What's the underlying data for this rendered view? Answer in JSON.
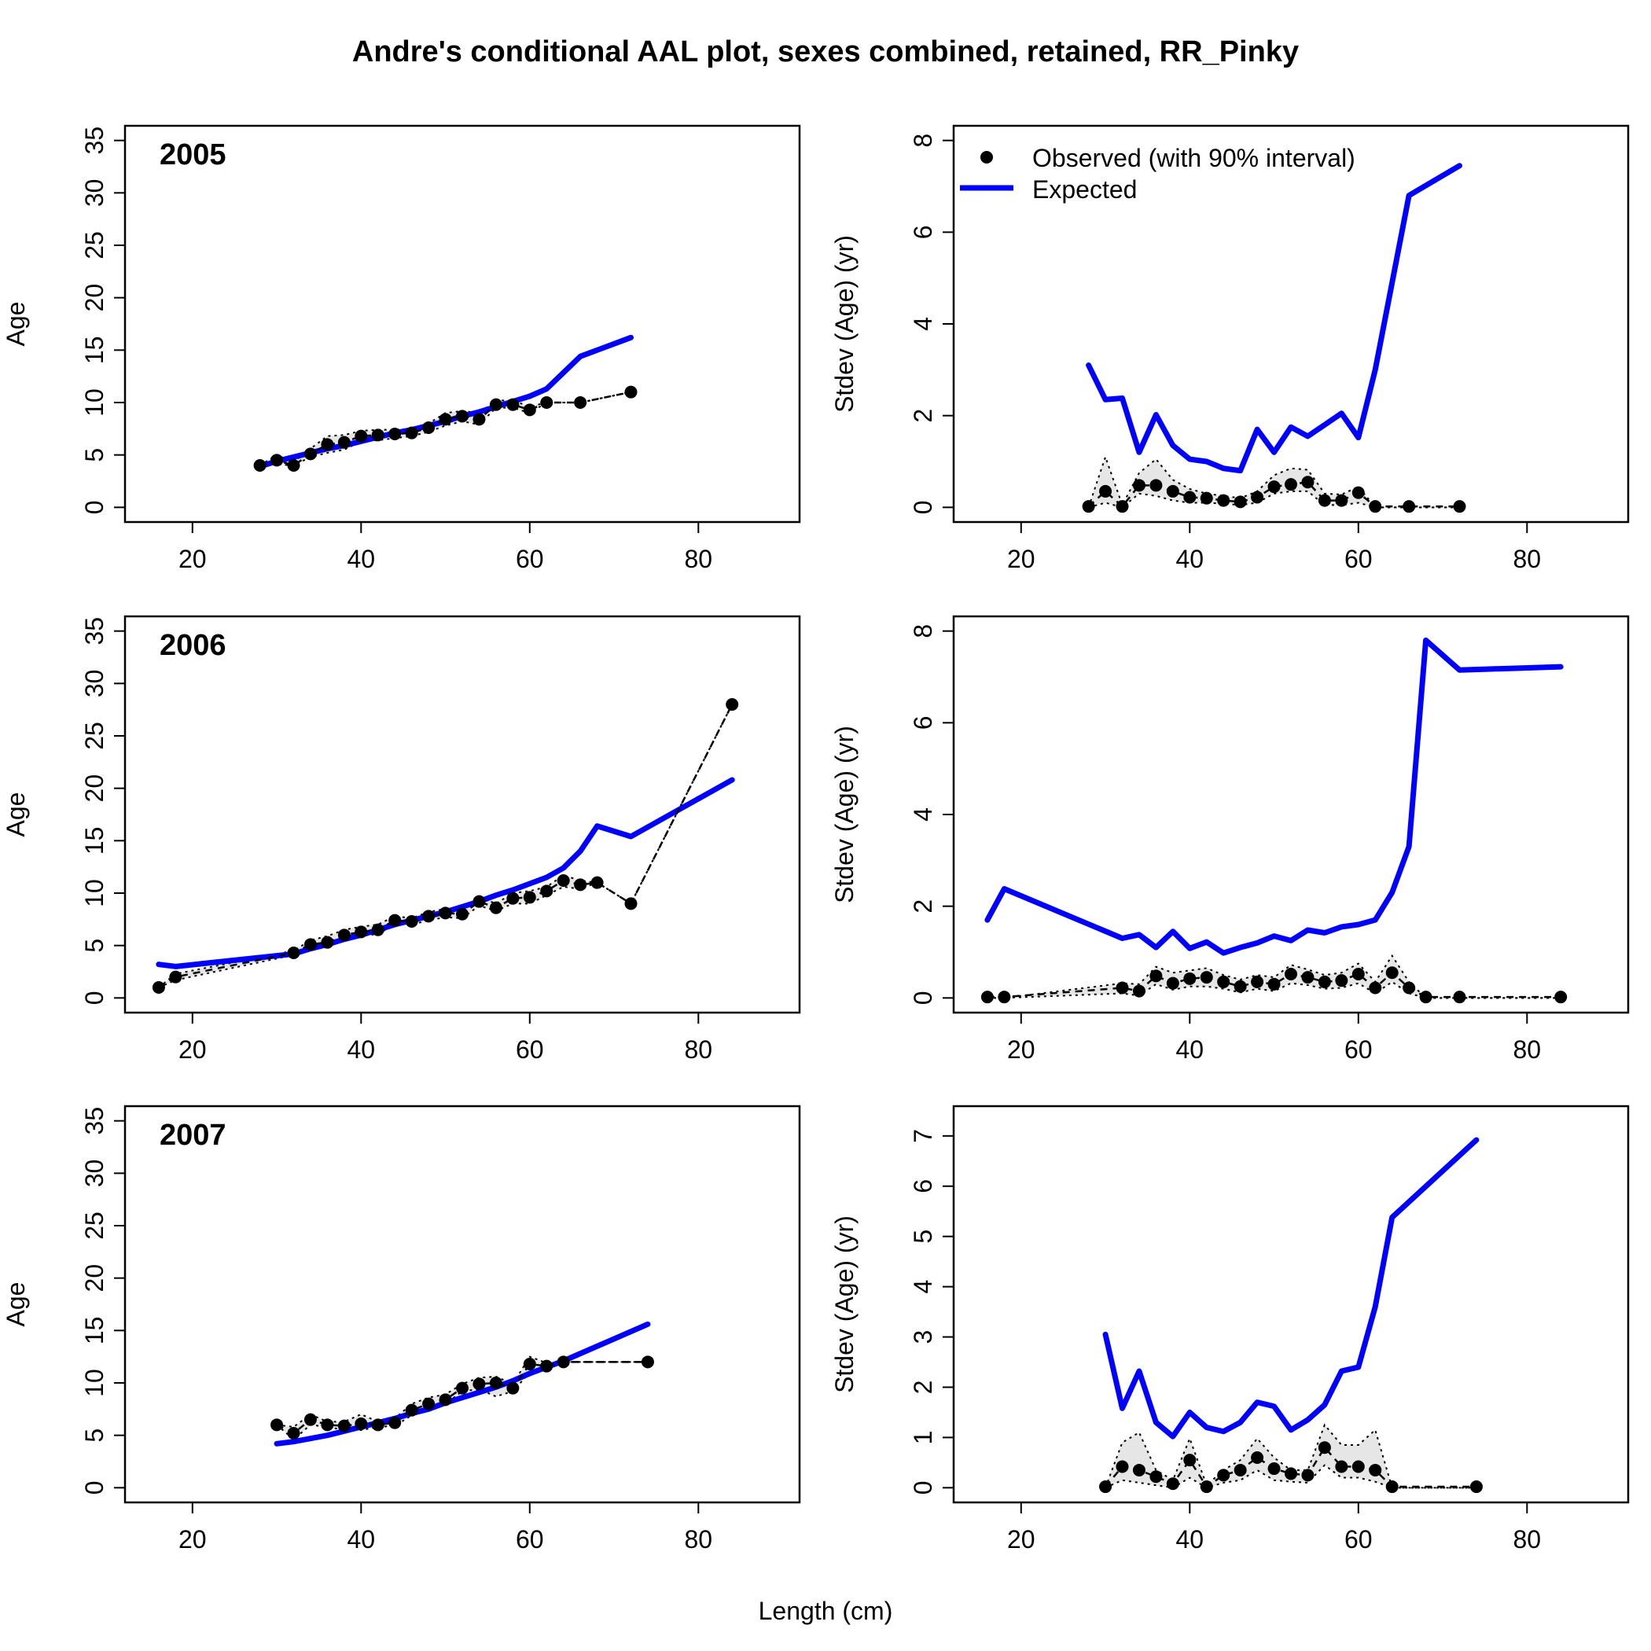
{
  "title": "Andre's conditional AAL plot, sexes combined, retained, RR_Pinky",
  "xlabel": "Length (cm)",
  "legend": {
    "observed": "Observed (with 90% interval)",
    "expected": "Expected",
    "placement": "top-left"
  },
  "colors": {
    "expected": "#0000ff",
    "observed": "#000000",
    "interval_fill": "#e6e6e6"
  },
  "chart_data": [
    {
      "type": "line",
      "year": "2005",
      "ylabel": "Age",
      "xlim": [
        12,
        92
      ],
      "ylim": [
        0,
        35
      ],
      "xticks": [
        "20",
        "40",
        "60",
        "80"
      ],
      "yticks": [
        "0",
        "5",
        "10",
        "15",
        "20",
        "25",
        "30",
        "35"
      ],
      "x": [
        28,
        30,
        32,
        34,
        36,
        38,
        40,
        42,
        44,
        46,
        48,
        50,
        52,
        54,
        56,
        58,
        60,
        62,
        66,
        72
      ],
      "observed": [
        4.0,
        4.5,
        4.0,
        5.1,
        6.0,
        6.2,
        6.8,
        6.9,
        7.0,
        7.1,
        7.6,
        8.4,
        8.7,
        8.4,
        9.8,
        9.8,
        9.3,
        10.0,
        10.0,
        11.0
      ],
      "lower": [
        4.0,
        4.1,
        4.0,
        4.8,
        5.2,
        5.5,
        6.3,
        6.4,
        6.6,
        6.8,
        7.2,
        7.8,
        8.2,
        7.9,
        9.5,
        9.5,
        9.0,
        10.0,
        10.0,
        11.0
      ],
      "upper": [
        4.0,
        5.0,
        4.3,
        5.6,
        6.8,
        6.9,
        7.3,
        7.4,
        7.4,
        7.5,
        8.0,
        9.0,
        9.2,
        9.0,
        10.2,
        10.2,
        9.6,
        10.0,
        10.0,
        11.0
      ],
      "expected": [
        3.9,
        4.4,
        4.8,
        5.2,
        5.6,
        5.9,
        6.3,
        6.7,
        7.1,
        7.4,
        7.8,
        8.2,
        8.7,
        9.1,
        9.6,
        10.1,
        10.6,
        11.3,
        14.4,
        16.2
      ]
    },
    {
      "type": "line",
      "year": "2005",
      "ylabel": "Stdev (Age) (yr)",
      "xlim": [
        12,
        92
      ],
      "ylim": [
        0,
        8
      ],
      "xticks": [
        "20",
        "40",
        "60",
        "80"
      ],
      "yticks": [
        "0",
        "2",
        "4",
        "6",
        "8"
      ],
      "x": [
        28,
        30,
        32,
        34,
        36,
        38,
        40,
        42,
        44,
        46,
        48,
        50,
        52,
        54,
        56,
        58,
        60,
        62,
        66,
        72
      ],
      "observed": [
        0.02,
        0.35,
        0.02,
        0.48,
        0.48,
        0.35,
        0.22,
        0.2,
        0.15,
        0.12,
        0.22,
        0.45,
        0.5,
        0.55,
        0.15,
        0.15,
        0.32,
        0.02,
        0.02,
        0.02
      ],
      "lower": [
        0.0,
        0.1,
        0.0,
        0.3,
        0.25,
        0.15,
        0.1,
        0.1,
        0.08,
        0.05,
        0.1,
        0.3,
        0.35,
        0.35,
        0.05,
        0.05,
        0.1,
        0.0,
        0.0,
        0.0
      ],
      "upper": [
        0.0,
        1.1,
        0.05,
        0.75,
        1.05,
        0.6,
        0.4,
        0.3,
        0.25,
        0.2,
        0.35,
        0.7,
        0.85,
        0.82,
        0.3,
        0.28,
        0.45,
        0.0,
        0.0,
        0.0
      ],
      "expected": [
        3.1,
        2.35,
        2.38,
        1.2,
        2.02,
        1.35,
        1.05,
        1.0,
        0.85,
        0.8,
        1.7,
        1.2,
        1.75,
        1.55,
        1.8,
        2.05,
        1.52,
        3.0,
        6.8,
        7.45
      ]
    },
    {
      "type": "line",
      "year": "2006",
      "ylabel": "Age",
      "xlim": [
        12,
        92
      ],
      "ylim": [
        0,
        35
      ],
      "xticks": [
        "20",
        "40",
        "60",
        "80"
      ],
      "yticks": [
        "0",
        "5",
        "10",
        "15",
        "20",
        "25",
        "30",
        "35"
      ],
      "x": [
        16,
        18,
        32,
        34,
        36,
        38,
        40,
        42,
        44,
        46,
        48,
        50,
        52,
        54,
        56,
        58,
        60,
        62,
        64,
        66,
        68,
        72,
        84
      ],
      "observed": [
        1.0,
        2.0,
        4.3,
        5.1,
        5.3,
        6.0,
        6.3,
        6.5,
        7.4,
        7.3,
        7.8,
        8.1,
        8.0,
        9.2,
        8.6,
        9.5,
        9.6,
        10.2,
        11.2,
        10.8,
        11.0,
        9.0,
        28.0
      ],
      "lower": [
        1.0,
        1.7,
        4.1,
        4.8,
        4.9,
        5.5,
        5.9,
        6.1,
        7.0,
        7.0,
        7.4,
        7.7,
        7.6,
        8.8,
        8.3,
        9.0,
        9.0,
        9.8,
        10.6,
        10.4,
        11.0,
        9.0,
        28.0
      ],
      "upper": [
        1.0,
        2.3,
        4.5,
        5.5,
        5.9,
        6.5,
        6.8,
        7.0,
        7.8,
        7.6,
        8.2,
        8.5,
        8.5,
        9.6,
        9.0,
        10.0,
        10.2,
        10.6,
        11.7,
        11.2,
        11.0,
        9.0,
        28.0
      ],
      "expected": [
        3.2,
        3.0,
        4.2,
        4.7,
        5.1,
        5.6,
        6.0,
        6.5,
        7.0,
        7.4,
        7.8,
        8.2,
        8.7,
        9.2,
        9.8,
        10.3,
        10.9,
        11.5,
        12.4,
        14.0,
        16.4,
        15.4,
        20.8
      ]
    },
    {
      "type": "line",
      "year": "2006",
      "ylabel": "Stdev (Age) (yr)",
      "xlim": [
        12,
        92
      ],
      "ylim": [
        0,
        8
      ],
      "xticks": [
        "20",
        "40",
        "60",
        "80"
      ],
      "yticks": [
        "0",
        "2",
        "4",
        "6",
        "8"
      ],
      "x": [
        16,
        18,
        32,
        34,
        36,
        38,
        40,
        42,
        44,
        46,
        48,
        50,
        52,
        54,
        56,
        58,
        60,
        62,
        64,
        66,
        68,
        72,
        84
      ],
      "observed": [
        0.02,
        0.02,
        0.22,
        0.15,
        0.48,
        0.32,
        0.42,
        0.45,
        0.35,
        0.25,
        0.35,
        0.3,
        0.52,
        0.45,
        0.35,
        0.38,
        0.52,
        0.22,
        0.55,
        0.22,
        0.02,
        0.02,
        0.02
      ],
      "lower": [
        0.0,
        0.0,
        0.1,
        0.05,
        0.3,
        0.18,
        0.25,
        0.25,
        0.2,
        0.12,
        0.2,
        0.15,
        0.32,
        0.28,
        0.2,
        0.22,
        0.32,
        0.1,
        0.35,
        0.1,
        0.0,
        0.0,
        0.0
      ],
      "upper": [
        0.0,
        0.0,
        0.32,
        0.3,
        0.68,
        0.55,
        0.6,
        0.65,
        0.5,
        0.4,
        0.5,
        0.45,
        0.72,
        0.62,
        0.5,
        0.55,
        0.75,
        0.35,
        0.92,
        0.35,
        0.0,
        0.0,
        0.0
      ],
      "expected": [
        1.7,
        2.38,
        1.3,
        1.38,
        1.1,
        1.45,
        1.08,
        1.22,
        0.98,
        1.1,
        1.2,
        1.35,
        1.25,
        1.48,
        1.42,
        1.55,
        1.6,
        1.7,
        2.3,
        3.3,
        7.8,
        7.15,
        7.22
      ]
    },
    {
      "type": "line",
      "year": "2007",
      "ylabel": "Age",
      "xlim": [
        12,
        92
      ],
      "ylim": [
        0,
        35
      ],
      "xticks": [
        "20",
        "40",
        "60",
        "80"
      ],
      "yticks": [
        "0",
        "5",
        "10",
        "15",
        "20",
        "25",
        "30",
        "35"
      ],
      "x": [
        30,
        32,
        34,
        36,
        38,
        40,
        42,
        44,
        46,
        48,
        50,
        52,
        54,
        56,
        58,
        60,
        62,
        64,
        74
      ],
      "observed": [
        6.0,
        5.2,
        6.5,
        6.0,
        5.9,
        6.1,
        6.0,
        6.2,
        7.4,
        8.0,
        8.4,
        9.5,
        9.9,
        10.0,
        9.5,
        11.8,
        11.6,
        12.0,
        12.0
      ],
      "lower": [
        6.0,
        4.6,
        6.0,
        5.8,
        5.5,
        5.5,
        5.8,
        5.9,
        6.9,
        7.5,
        8.0,
        9.2,
        9.4,
        8.7,
        9.2,
        11.0,
        11.4,
        12.0,
        12.0
      ],
      "upper": [
        6.0,
        5.8,
        7.0,
        6.3,
        6.3,
        7.0,
        6.3,
        6.6,
        8.0,
        8.6,
        8.9,
        9.9,
        10.5,
        10.6,
        9.9,
        12.5,
        11.9,
        12.0,
        12.0
      ],
      "expected": [
        4.2,
        4.4,
        4.7,
        5.0,
        5.4,
        5.8,
        6.2,
        6.6,
        7.1,
        7.5,
        8.1,
        8.6,
        9.1,
        9.6,
        10.2,
        10.9,
        11.5,
        12.1,
        15.6
      ]
    },
    {
      "type": "line",
      "year": "2007",
      "ylabel": "Stdev (Age) (yr)",
      "xlim": [
        12,
        92
      ],
      "ylim": [
        0,
        7.3
      ],
      "xticks": [
        "20",
        "40",
        "60",
        "80"
      ],
      "yticks": [
        "0",
        "1",
        "2",
        "3",
        "4",
        "5",
        "6",
        "7"
      ],
      "x": [
        30,
        32,
        34,
        36,
        38,
        40,
        42,
        44,
        46,
        48,
        50,
        52,
        54,
        56,
        58,
        60,
        62,
        64,
        74
      ],
      "observed": [
        0.02,
        0.42,
        0.35,
        0.22,
        0.08,
        0.55,
        0.02,
        0.25,
        0.35,
        0.6,
        0.38,
        0.28,
        0.25,
        0.8,
        0.42,
        0.42,
        0.35,
        0.02,
        0.02
      ],
      "lower": [
        0.0,
        0.15,
        0.1,
        0.05,
        0.0,
        0.2,
        0.0,
        0.1,
        0.15,
        0.35,
        0.15,
        0.12,
        0.1,
        0.45,
        0.2,
        0.2,
        0.12,
        0.0,
        0.0
      ],
      "upper": [
        0.0,
        0.9,
        1.1,
        0.35,
        0.15,
        0.98,
        0.05,
        0.35,
        0.55,
        0.98,
        0.6,
        0.35,
        0.35,
        1.25,
        0.85,
        0.85,
        1.15,
        0.0,
        0.0
      ],
      "expected": [
        3.05,
        1.58,
        2.32,
        1.3,
        1.02,
        1.5,
        1.2,
        1.12,
        1.3,
        1.7,
        1.62,
        1.15,
        1.35,
        1.65,
        2.32,
        2.4,
        3.6,
        5.38,
        6.92
      ]
    }
  ]
}
